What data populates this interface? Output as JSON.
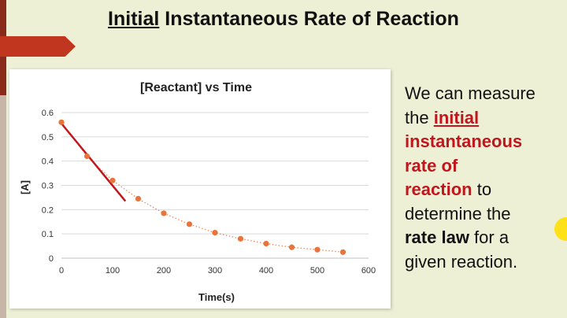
{
  "slide": {
    "title_part1": "Initial",
    "title_part2": " Instantaneous Rate of Reaction",
    "text": {
      "l1": "We can measure",
      "l2a": "the ",
      "l2b": "initial",
      "l3": "instantaneous",
      "l4": "rate of",
      "l5a": "reaction",
      "l5b": " to",
      "l6": "determine the",
      "l7a": "rate law",
      "l7b": " for a",
      "l8": "given reaction."
    }
  },
  "chart_data": {
    "type": "scatter",
    "title": "[Reactant]  vs Time",
    "xlabel": "Time(s)",
    "ylabel": "[A]",
    "xlim": [
      0,
      600
    ],
    "ylim": [
      0,
      0.6
    ],
    "xticks": [
      0,
      100,
      200,
      300,
      400,
      500,
      600
    ],
    "yticks": [
      0,
      0.1,
      0.2,
      0.3,
      0.4,
      0.5,
      0.6
    ],
    "ytick_labels": [
      "0",
      "0.1",
      "0.2",
      "0.3",
      "0.4",
      "0.5",
      "0.6"
    ],
    "grid": true,
    "trendline": "dotted",
    "series": [
      {
        "x": [
          0,
          50,
          100,
          150,
          200,
          250,
          300,
          350,
          400,
          450,
          500,
          550
        ],
        "y": [
          0.56,
          0.42,
          0.32,
          0.245,
          0.185,
          0.14,
          0.105,
          0.08,
          0.06,
          0.045,
          0.035,
          0.025
        ],
        "color": "#e8743b"
      }
    ],
    "tangent": {
      "x": [
        0,
        125
      ],
      "y": [
        0.555,
        0.235
      ],
      "color": "#c0161d"
    }
  }
}
